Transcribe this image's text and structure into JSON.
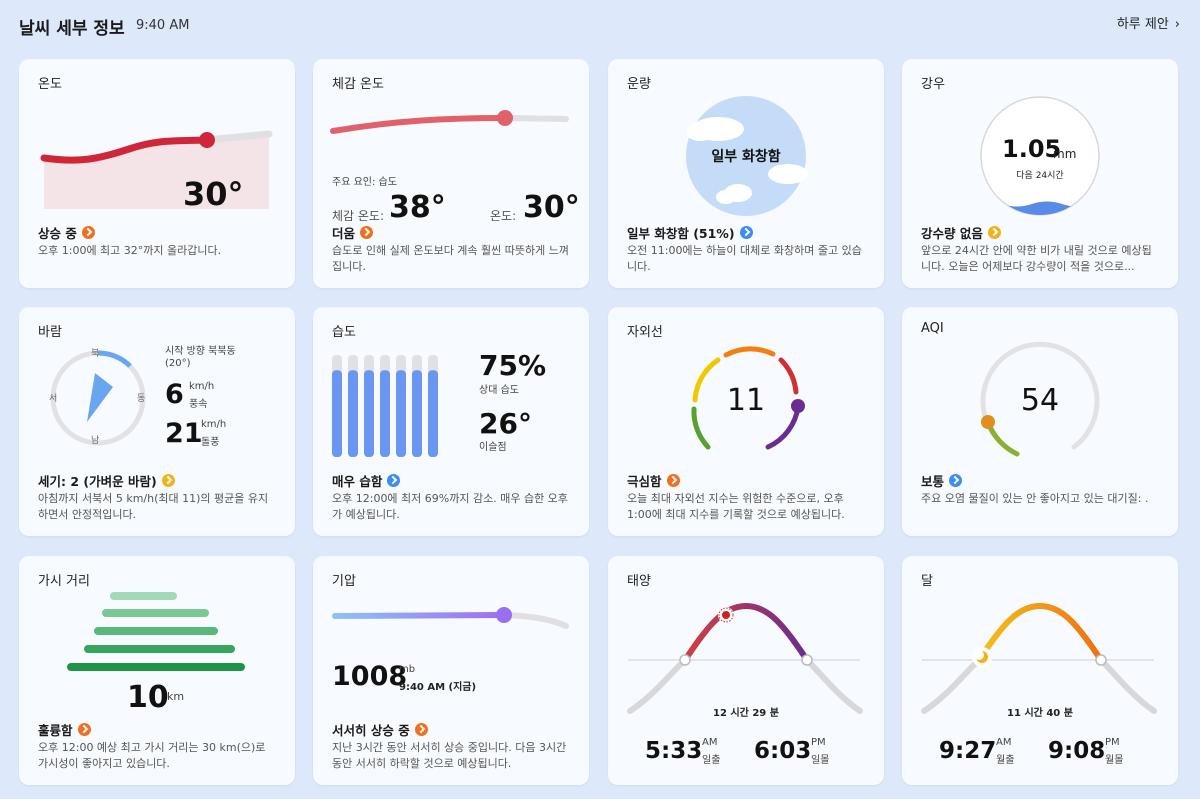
{
  "header": {
    "title": "날씨 세부 정보",
    "time": "9:40 AM",
    "suggest": "하루 제안"
  },
  "temperature": {
    "title": "온도",
    "value": "30°",
    "status": "상승 중",
    "desc": "오후 1:00에 최고 32°까지 올라갑니다."
  },
  "feels": {
    "title": "체감 온도",
    "factor": "주요 요인: 습도",
    "feels_label": "체감 온도:",
    "feels_value": "38°",
    "temp_label": "온도:",
    "temp_value": "30°",
    "status": "더움",
    "desc": "습도로 인해 실제 온도보다 계속 훨씬 따뜻하게 느껴집니다."
  },
  "cloud": {
    "title": "운량",
    "center": "일부 화창함",
    "status": "일부 화창함 (51%)",
    "desc": "오전 11:00에는 하늘이 대체로 화창하며 줄고 있습니다."
  },
  "rain": {
    "title": "강우",
    "value": "1.05",
    "unit": "mm",
    "period": "다음 24시간",
    "status": "강수량 없음",
    "desc": "앞으로 24시간 안에 약한 비가 내릴 것으로 예상됩니다. 오늘은 어제보다 강수량이 적을 것으로..."
  },
  "wind": {
    "title": "바람",
    "n": "북",
    "s": "남",
    "e": "동",
    "w": "서",
    "direction": "시작 방향 북북동",
    "deg": "(20°)",
    "speed": "6",
    "speed_unit": "km/h",
    "speed_label": "풍속",
    "gust": "21",
    "gust_unit": "km/h",
    "gust_label": "돌풍",
    "status": "세기: 2 (가벼운 바람)",
    "desc": "아침까지 서북서 5 km/h(최대 11)의 평균을 유지하면서 안정적입니다."
  },
  "humidity": {
    "title": "습도",
    "value": "75%",
    "value_label": "상대 습도",
    "dew": "26°",
    "dew_label": "이슬점",
    "status": "매우 습함",
    "desc": "오후 12:00에 최저 69%까지 감소. 매우 습한 오후가 예상됩니다.",
    "bar_level": 0.85
  },
  "uv": {
    "title": "자외선",
    "value": "11",
    "status": "극심함",
    "desc": "오늘 최대 자외선 지수는 위험한 수준으로, 오후 1:00에 최대 지수를 기록할 것으로 예상됩니다."
  },
  "aqi": {
    "title": "AQI",
    "value": "54",
    "status": "보통",
    "desc": "주요 오염 물질이 있는 안 좋아지고 있는 대기질: ."
  },
  "visibility": {
    "title": "가시 거리",
    "value": "10",
    "unit": "km",
    "status": "훌륭함",
    "desc": "오후 12:00 예상 최고 가시 거리는 30 km(으)로 가시성이 좋아지고 있습니다."
  },
  "pressure": {
    "title": "기압",
    "value": "1008",
    "unit": "mb",
    "time": "9:40 AM (지금)",
    "status": "서서히 상승 중",
    "desc": "지난 3시간 동안 서서히 상승 중입니다. 다음 3시간 동안 서서히 하락할 것으로 예상됩니다."
  },
  "sun": {
    "title": "태양",
    "duration": "12 시간 29 분",
    "rise": "5:33",
    "rise_ampm": "AM",
    "rise_label": "일출",
    "set": "6:03",
    "set_ampm": "PM",
    "set_label": "일몰"
  },
  "moon": {
    "title": "달",
    "duration": "11 시간 40 분",
    "rise": "9:27",
    "rise_ampm": "AM",
    "rise_label": "월출",
    "set": "9:08",
    "set_ampm": "PM",
    "set_label": "월몰"
  },
  "colors": {
    "temp": "#d0263a",
    "feels": "#e0606c",
    "humidity": "#6a95f0",
    "pressure": "#9a6ef0",
    "sun": "#9a3c80",
    "moon": "#f08010"
  }
}
